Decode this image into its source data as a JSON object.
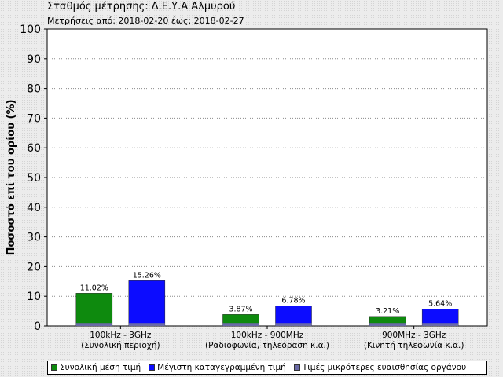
{
  "header": {
    "title": "Σταθμός μέτρησης: Δ.Ε.Υ.Α Αλμυρού",
    "subtitle": "Μετρήσεις από: 2018-02-20 έως: 2018-02-27"
  },
  "chart_data": {
    "type": "bar",
    "ylabel": "Ποσοστό επί του ορίου (%)",
    "ylim": [
      0,
      100
    ],
    "yticks": [
      0,
      10,
      20,
      30,
      40,
      50,
      60,
      70,
      80,
      90,
      100
    ],
    "grid": true,
    "categories": [
      [
        "100kHz - 3GHz",
        "(Συνολική περιοχή)"
      ],
      [
        "100kHz - 900MHz",
        "(Ραδιοφωνία, τηλεόραση κ.α.)"
      ],
      [
        "900MHz - 3GHz",
        "(Κινητή τηλεφωνία κ.α.)"
      ]
    ],
    "series": [
      {
        "name": "Συνολική μέση τιμή",
        "values": [
          11.02,
          3.87,
          3.21
        ],
        "labels": [
          "11.02%",
          "3.87%",
          "3.21%"
        ],
        "color": "#0e8a0e"
      },
      {
        "name": "Μέγιστη καταγεγραμμένη τιμή",
        "values": [
          15.26,
          6.78,
          5.64
        ],
        "labels": [
          "15.26%",
          "6.78%",
          "5.64%"
        ],
        "color": "#0c0cff"
      }
    ],
    "sensitivity": {
      "name": "Τιμές μικρότερες ευαισθησίας οργάνου",
      "value": 1,
      "color": "#6a6aa6"
    },
    "legend_position": "bottom"
  }
}
